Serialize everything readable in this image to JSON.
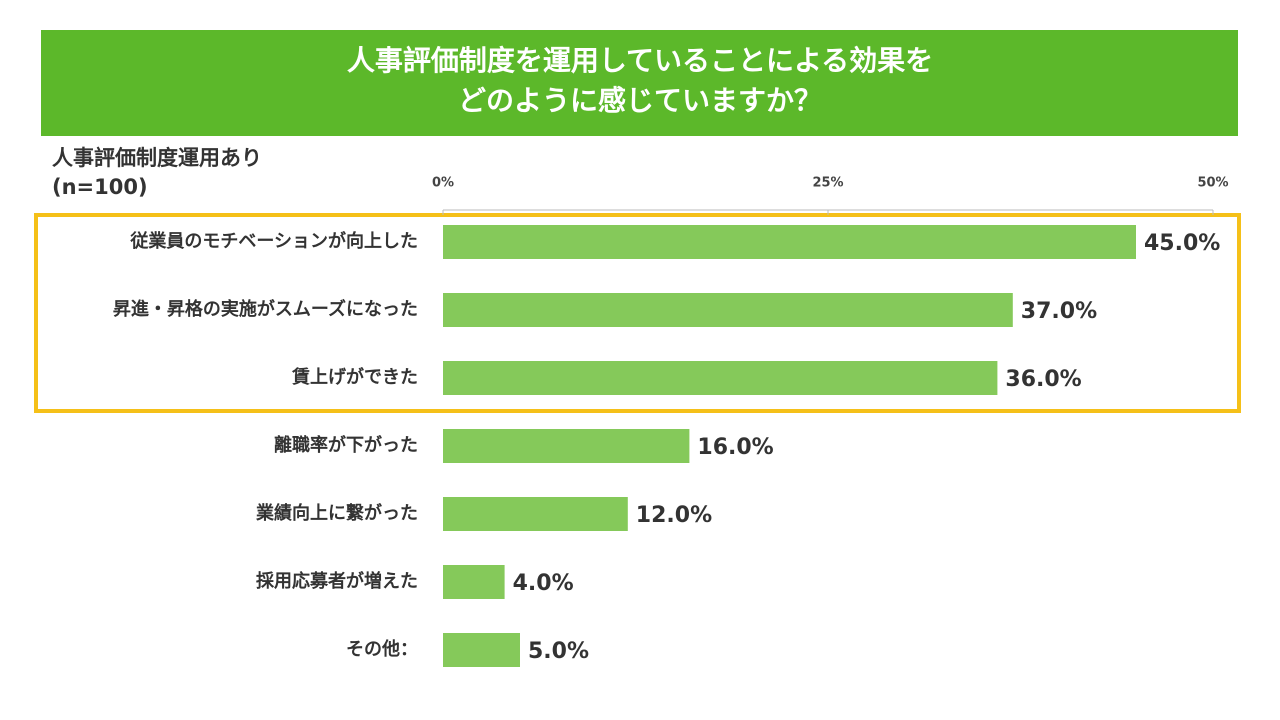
{
  "chart_data": {
    "type": "bar",
    "orientation": "horizontal",
    "title": [
      "人事評価制度を運用していることによる効果を",
      "どのように感じていますか？"
    ],
    "subtitle": [
      "人事評価制度運用あり",
      "(n=100)"
    ],
    "categories": [
      "従業員のモチベーションが向上した",
      "昇進・昇格の実施がスムーズになった",
      "賃上げができた",
      "離職率が下がった",
      "業績向上に繋がった",
      "採用応募者が増えた",
      "その他："
    ],
    "values": [
      45,
      37,
      36,
      16,
      12,
      4,
      5
    ],
    "value_labels": [
      "45.0%",
      "37.0%",
      "36.0%",
      "16.0%",
      "12.0%",
      "4.0%",
      "5.0%"
    ],
    "color": "#85c95a",
    "xlim": [
      0,
      50
    ],
    "xticks": [
      {
        "value": 0,
        "label": "0%"
      },
      {
        "value": 25,
        "label": "25%"
      },
      {
        "value": 50,
        "label": "50%"
      }
    ]
  }
}
